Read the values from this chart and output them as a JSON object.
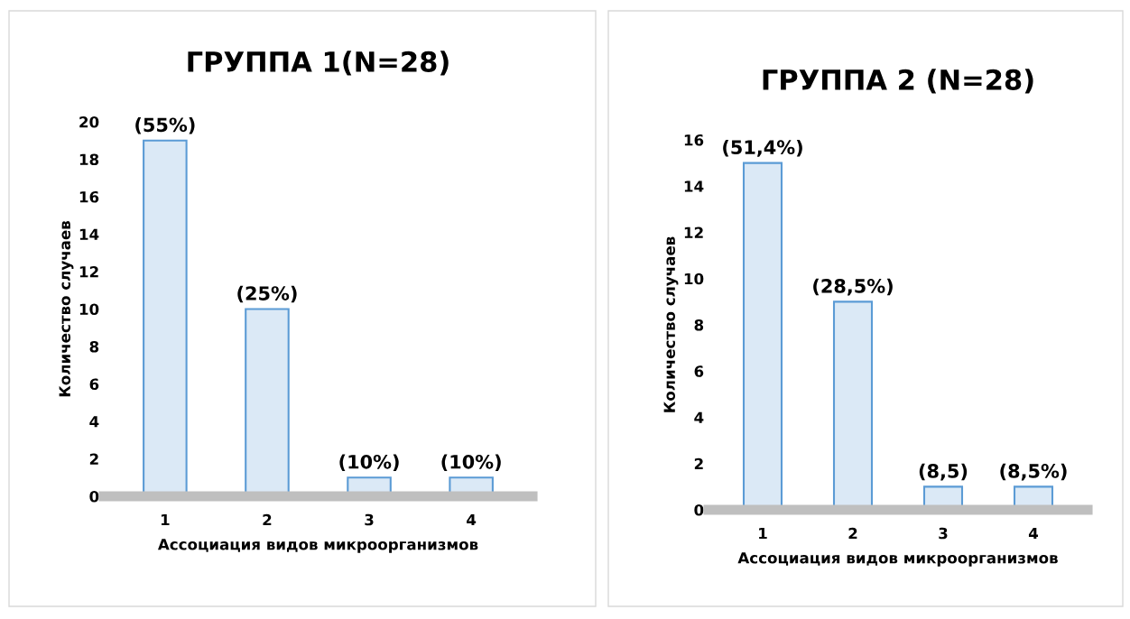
{
  "chart_data": [
    {
      "type": "bar",
      "title": "ГРУППА 1(N=28)",
      "xlabel": "Ассоциация видов микроорганизмов",
      "ylabel": "Количество случаев",
      "categories": [
        "1",
        "2",
        "3",
        "4"
      ],
      "values": [
        19,
        10,
        1,
        1
      ],
      "color": "#5b9bd5",
      "ylim": [
        0,
        20
      ],
      "yticks": [
        0,
        2,
        4,
        6,
        8,
        10,
        12,
        14,
        16,
        18,
        20
      ],
      "grid": false,
      "annotations": [
        {
          "text": "(55%)",
          "x": "1",
          "y": 19
        },
        {
          "text": "(25%)",
          "x": "2",
          "y": 10
        },
        {
          "text": "(10%)",
          "x": "3",
          "y": 1
        },
        {
          "text": "(10%)",
          "x": "4",
          "y": 1
        }
      ]
    },
    {
      "type": "bar",
      "title": "ГРУППА 2 (N=28)",
      "xlabel": "Ассоциация видов микроорганизмов",
      "ylabel": "Количество случаев",
      "categories": [
        "1",
        "2",
        "3",
        "4"
      ],
      "values": [
        15,
        9,
        1,
        1
      ],
      "color": "#5b9bd5",
      "ylim": [
        0,
        16
      ],
      "yticks": [
        0,
        2,
        4,
        6,
        8,
        10,
        12,
        14,
        16
      ],
      "grid": false,
      "annotations": [
        {
          "text": "(51,4%)",
          "x": "1",
          "y": 15
        },
        {
          "text": "(28,5%)",
          "x": "2",
          "y": 9
        },
        {
          "text": "(8,5)",
          "x": "3",
          "y": 1
        },
        {
          "text": "(8,5%)",
          "x": "4",
          "y": 1
        }
      ]
    }
  ]
}
